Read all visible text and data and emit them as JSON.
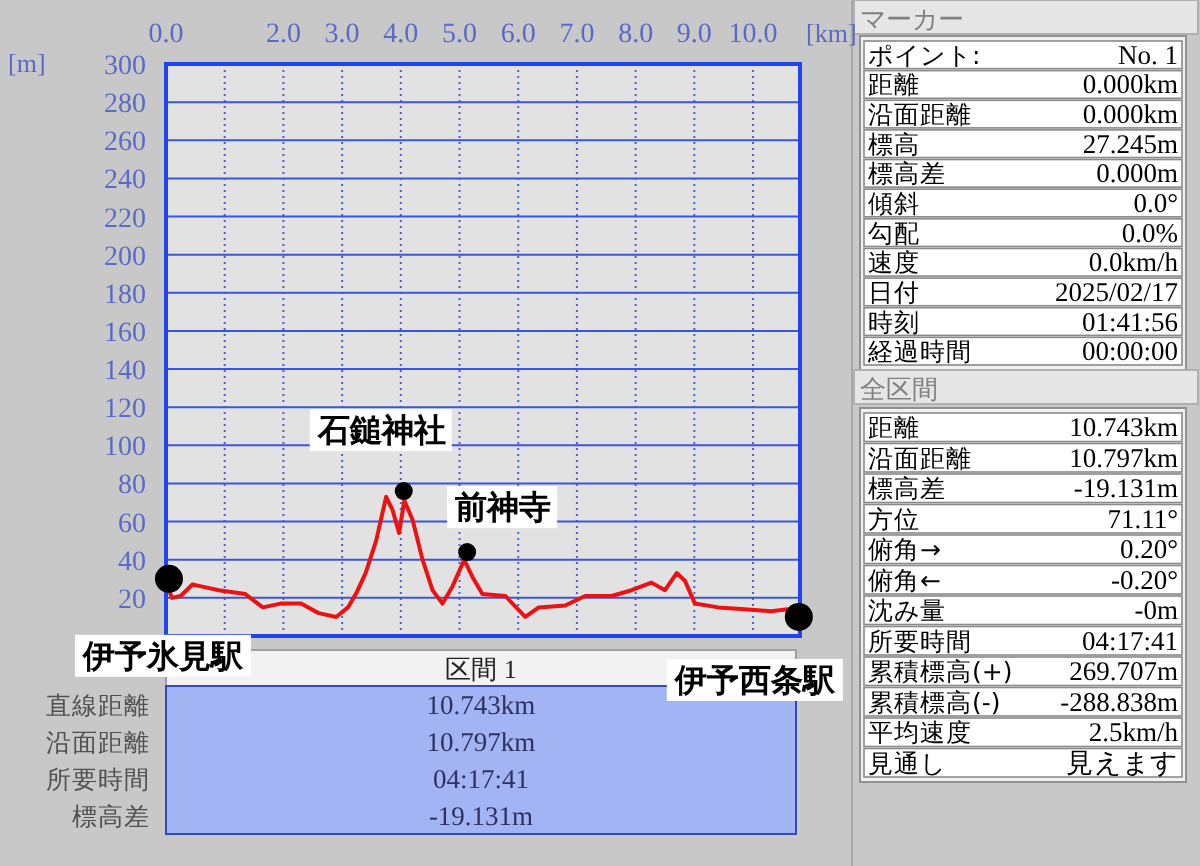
{
  "chart_data": [
    {
      "type": "line",
      "xlabel": "[km]",
      "ylabel": "[m]",
      "xlim": [
        0,
        10.8
      ],
      "ylim": [
        0,
        300
      ],
      "xticks": [
        {
          "value": 0,
          "label": "0.0"
        },
        {
          "value": 1,
          "label": null
        },
        {
          "value": 2,
          "label": "2.0"
        },
        {
          "value": 3,
          "label": "3.0"
        },
        {
          "value": 4,
          "label": "4.0"
        },
        {
          "value": 5,
          "label": "5.0"
        },
        {
          "value": 6,
          "label": "6.0"
        },
        {
          "value": 7,
          "label": "7.0"
        },
        {
          "value": 8,
          "label": "8.0"
        },
        {
          "value": 9,
          "label": "9.0"
        },
        {
          "value": 10,
          "label": "10.0"
        }
      ],
      "yticks": [
        20,
        40,
        60,
        80,
        100,
        120,
        140,
        160,
        180,
        200,
        220,
        240,
        260,
        280,
        300
      ],
      "grid": true,
      "series": [
        {
          "type": "line",
          "color": "#ee1111",
          "x": [
            0.03,
            0.1,
            0.25,
            0.45,
            0.6,
            0.9,
            1.35,
            1.65,
            1.95,
            2.3,
            2.6,
            2.9,
            3.1,
            3.25,
            3.4,
            3.58,
            3.75,
            3.86,
            3.97,
            4.06,
            4.2,
            4.37,
            4.54,
            4.71,
            4.88,
            5.08,
            5.22,
            5.39,
            5.78,
            6.12,
            6.35,
            6.8,
            7.14,
            7.59,
            7.93,
            8.27,
            8.5,
            8.7,
            8.84,
            9.01,
            9.41,
            9.86,
            10.31,
            10.59,
            10.71,
            10.78
          ],
          "values": [
            26,
            20,
            21,
            27,
            26,
            24,
            22,
            15,
            17,
            17,
            12,
            10,
            15,
            23,
            33,
            50,
            73,
            66,
            54,
            71,
            61,
            40,
            24,
            17,
            26,
            40,
            31,
            22,
            21,
            10,
            15,
            16,
            21,
            21,
            24,
            28,
            24,
            33,
            29,
            17,
            15,
            14,
            13,
            14,
            10,
            9
          ]
        },
        {
          "type": "scatter",
          "color": "#000000",
          "marker": "circle",
          "x": [
            0.05,
            10.78
          ],
          "values": [
            30,
            10
          ]
        },
        {
          "type": "scatter",
          "color": "#000000",
          "marker": "circle",
          "x": [
            4.05,
            5.13
          ],
          "values": [
            76,
            44
          ]
        }
      ],
      "annotations": [
        {
          "text": "伊予氷見駅",
          "x": 0.05,
          "y": 30
        },
        {
          "text": "石鎚神社",
          "x": 4.05,
          "y": 76
        },
        {
          "text": "前神寺",
          "x": 5.13,
          "y": 44
        },
        {
          "text": "伊予西条駅",
          "x": 10.78,
          "y": 10
        }
      ]
    },
    {
      "type": "other",
      "title": "マーカー",
      "annotations": [
        "ポイント:",
        "No. 1",
        "距離",
        "0.000km",
        "沿面距離",
        "0.000km",
        "標高",
        "27.245m",
        "標高差",
        "0.000m",
        "傾斜",
        "0.0°",
        "勾配",
        "0.0%",
        "速度",
        "0.0km/h",
        "日付",
        "2025/02/17",
        "時刻",
        "01:41:56",
        "経過時間",
        "00:00:00"
      ]
    },
    {
      "type": "other",
      "title": "全区間",
      "annotations": [
        "距離",
        "10.743km",
        "沿面距離",
        "10.797km",
        "標高差",
        "-19.131m",
        "方位",
        "71.11°",
        "俯角→",
        "0.20°",
        "俯角←",
        "-0.20°",
        "沈み量",
        "-0m",
        "所要時間",
        "04:17:41",
        "累積標高(+)",
        "269.707m",
        "累積標高(-)",
        "-288.838m",
        "平均速度",
        "2.5km/h",
        "見通し",
        "見えます"
      ]
    },
    {
      "type": "other",
      "title": "区間 1",
      "annotations": [
        "直線距離",
        "10.743km",
        "沿面距離",
        "10.797km",
        "所要時間",
        "04:17:41",
        "標高差",
        "-19.131m"
      ]
    }
  ]
}
